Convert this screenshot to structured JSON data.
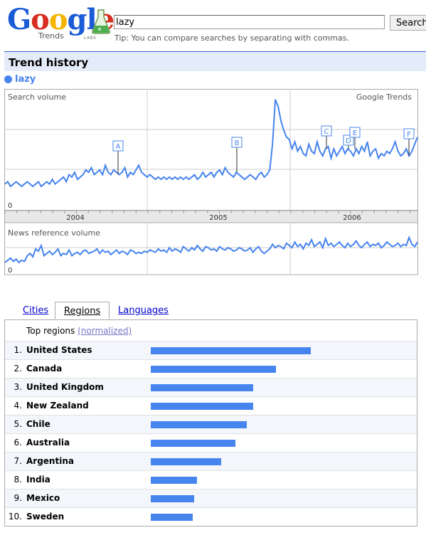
{
  "logo": {
    "wordmark": "Google",
    "subtitle": "Trends",
    "labs": "LABS"
  },
  "search": {
    "value": "lazy",
    "button_label": "Search",
    "tip": "Tip: You can compare searches by separating with commas."
  },
  "section": {
    "title": "Trend history"
  },
  "legend": {
    "term": "lazy",
    "color": "#4684ee"
  },
  "chart_data": [
    {
      "type": "line",
      "title": "Search volume",
      "watermark": "Google Trends",
      "y_zero_label": "0",
      "x_year_labels": [
        "2004",
        "2005",
        "2006"
      ],
      "annotations": [
        "A",
        "B",
        "C",
        "D",
        "E",
        "F"
      ],
      "series": [
        {
          "name": "lazy",
          "values": [
            1.1,
            1.2,
            1.0,
            1.1,
            1.2,
            1.1,
            1.0,
            1.1,
            1.2,
            1.1,
            1.0,
            1.1,
            1.2,
            1.0,
            1.1,
            1.2,
            1.1,
            1.3,
            1.1,
            1.2,
            1.3,
            1.4,
            1.2,
            1.5,
            1.4,
            1.6,
            1.3,
            1.4,
            1.5,
            1.7,
            1.6,
            1.8,
            1.5,
            1.6,
            1.7,
            1.5,
            1.9,
            1.6,
            1.5,
            1.7,
            1.6,
            1.5,
            1.6,
            1.8,
            1.4,
            1.6,
            1.5,
            1.7,
            1.9,
            1.6,
            1.5,
            1.4,
            1.5,
            1.4,
            1.3,
            1.4,
            1.3,
            1.4,
            1.3,
            1.4,
            1.3,
            1.4,
            1.3,
            1.4,
            1.3,
            1.4,
            1.3,
            1.4,
            1.5,
            1.3,
            1.4,
            1.6,
            1.4,
            1.5,
            1.6,
            1.4,
            1.6,
            1.7,
            1.5,
            1.8,
            1.6,
            1.5,
            1.4,
            1.6,
            1.5,
            1.4,
            1.3,
            1.4,
            1.5,
            1.4,
            1.3,
            1.5,
            1.6,
            1.4,
            1.5,
            1.7,
            2.8,
            4.7,
            4.4,
            3.8,
            3.4,
            3.1,
            3.0,
            2.6,
            2.9,
            2.5,
            2.7,
            2.4,
            2.3,
            2.8,
            2.5,
            2.4,
            2.9,
            2.5,
            2.3,
            2.6,
            2.7,
            2.2,
            2.6,
            2.3,
            2.5,
            2.7,
            2.4,
            2.6,
            2.5,
            2.3,
            2.6,
            2.4,
            2.7,
            2.5,
            2.9,
            2.3,
            2.5,
            2.6,
            2.2,
            2.4,
            2.3,
            2.5,
            2.4,
            2.6,
            2.9,
            2.5,
            2.3,
            2.4,
            2.6,
            2.3,
            2.5,
            2.8,
            3.1
          ]
        }
      ],
      "ylim": [
        0,
        5
      ]
    },
    {
      "type": "line",
      "title": "News reference volume",
      "y_zero_label": "0",
      "series": [
        {
          "name": "lazy",
          "values": [
            1.0,
            1.2,
            1.4,
            1.1,
            1.3,
            1.0,
            1.2,
            1.1,
            1.6,
            1.8,
            1.5,
            2.2,
            2.0,
            2.5,
            1.6,
            1.8,
            2.0,
            1.7,
            1.9,
            2.2,
            1.6,
            1.8,
            1.7,
            2.1,
            1.6,
            1.8,
            1.9,
            1.7,
            2.0,
            2.1,
            1.8,
            1.9,
            2.0,
            2.2,
            1.8,
            2.1,
            1.9,
            2.0,
            1.7,
            1.9,
            2.1,
            1.8,
            2.0,
            1.9,
            1.7,
            2.1,
            2.0,
            1.8,
            1.9,
            1.8,
            2.0,
            1.9,
            2.1,
            2.0,
            1.9,
            2.2,
            2.0,
            2.1,
            1.9,
            2.3,
            2.0,
            2.2,
            2.1,
            1.9,
            2.4,
            2.2,
            2.0,
            2.3,
            2.1,
            2.5,
            2.2,
            2.0,
            2.4,
            2.3,
            2.1,
            2.2,
            2.0,
            2.4,
            2.2,
            2.1,
            2.3,
            2.2,
            2.0,
            2.1,
            2.3,
            2.2,
            2.0,
            2.1,
            2.3,
            1.9,
            2.2,
            2.4,
            2.0,
            1.8,
            2.0,
            2.2,
            2.6,
            2.3,
            2.5,
            2.4,
            2.2,
            2.7,
            2.5,
            2.3,
            2.8,
            2.4,
            2.6,
            2.2,
            2.7,
            2.5,
            3.0,
            2.4,
            2.6,
            2.8,
            2.3,
            3.1,
            2.5,
            2.7,
            2.4,
            2.6,
            2.8,
            2.5,
            2.3,
            2.7,
            2.4,
            2.6,
            2.9,
            2.5,
            2.3,
            2.6,
            2.8,
            2.4,
            2.6,
            2.5,
            2.7,
            2.3,
            2.5,
            2.8,
            2.6,
            2.4,
            2.5,
            2.7,
            2.4,
            2.6,
            2.5,
            3.2,
            2.6,
            2.4,
            2.8
          ]
        }
      ],
      "ylim": [
        0,
        4
      ]
    }
  ],
  "tabs": [
    {
      "label": "Cities"
    },
    {
      "label": "Regions"
    },
    {
      "label": "Languages"
    }
  ],
  "regions": {
    "heading": "Top regions",
    "normalized_link": "(normalized)",
    "rows": [
      {
        "rank": "1.",
        "name": "United States",
        "value": 100
      },
      {
        "rank": "2.",
        "name": "Canada",
        "value": 78
      },
      {
        "rank": "3.",
        "name": "United Kingdom",
        "value": 64
      },
      {
        "rank": "4.",
        "name": "New Zealand",
        "value": 64
      },
      {
        "rank": "5.",
        "name": "Chile",
        "value": 60
      },
      {
        "rank": "6.",
        "name": "Australia",
        "value": 53
      },
      {
        "rank": "7.",
        "name": "Argentina",
        "value": 44
      },
      {
        "rank": "8.",
        "name": "India",
        "value": 29
      },
      {
        "rank": "9.",
        "name": "Mexico",
        "value": 27
      },
      {
        "rank": "10.",
        "name": "Sweden",
        "value": 26
      }
    ]
  }
}
